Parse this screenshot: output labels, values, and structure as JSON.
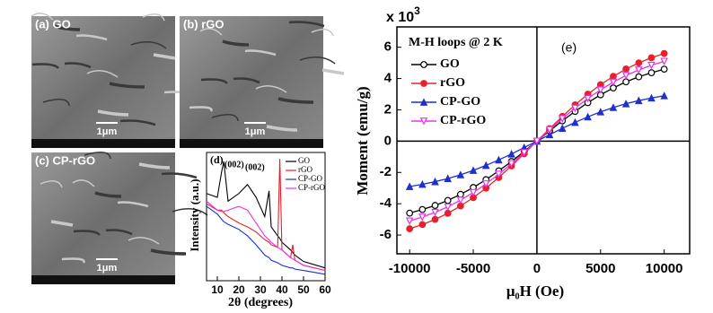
{
  "panels": [
    {
      "label": "(a) GO",
      "scale": "1μm"
    },
    {
      "label": "(b) rGO",
      "scale": "1μm"
    },
    {
      "label": "(c) CP-rGO",
      "scale": "1μm"
    }
  ],
  "chart_data": [
    {
      "type": "line",
      "panel_label": "(d)",
      "x_label": "2θ (degrees)",
      "y_label": "Intensity (a.u.)",
      "x": [
        5,
        10,
        12,
        13,
        15,
        20,
        24,
        28,
        32,
        34,
        35,
        38,
        39,
        40,
        44,
        45,
        46,
        50,
        60
      ],
      "xlim": [
        5,
        60
      ],
      "xticks": [
        10,
        20,
        30,
        40,
        50,
        60
      ],
      "ylim": [
        0,
        100
      ],
      "annotations": [
        "(002)",
        "(002)"
      ],
      "legend": "upper right",
      "series": [
        {
          "name": "GO",
          "color": "#000000",
          "values": [
            68,
            65,
            85,
            93,
            62,
            68,
            75,
            65,
            50,
            70,
            42,
            35,
            33,
            30,
            24,
            22,
            20,
            15,
            10
          ]
        },
        {
          "name": "rGO",
          "color": "#e8202a",
          "values": [
            60,
            55,
            55,
            53,
            50,
            45,
            42,
            38,
            32,
            30,
            28,
            26,
            95,
            24,
            18,
            28,
            16,
            12,
            8
          ]
        },
        {
          "name": "CP-GO",
          "color": "#1f2fd0",
          "values": [
            58,
            52,
            48,
            46,
            44,
            40,
            35,
            28,
            20,
            18,
            16,
            14,
            13,
            12,
            10,
            10,
            9,
            8,
            5
          ]
        },
        {
          "name": "CP-rGO",
          "color": "#e832e8",
          "values": [
            62,
            55,
            54,
            54,
            55,
            58,
            55,
            45,
            35,
            32,
            30,
            26,
            25,
            24,
            18,
            17,
            16,
            12,
            8
          ]
        }
      ]
    },
    {
      "type": "line",
      "panel_label": "(e)",
      "legend_title": "M-H  loops @ 2 K",
      "x_label": "μ₀H (Oe)",
      "y_label": "Moment (emu/g)",
      "y_multiplier": "x 10",
      "y_multiplier_exp": "3",
      "legend": "upper left",
      "x": [
        -10000,
        -9000,
        -8000,
        -7000,
        -6000,
        -5000,
        -4000,
        -3000,
        -2000,
        -1000,
        0,
        1000,
        2000,
        3000,
        4000,
        5000,
        6000,
        7000,
        8000,
        9000,
        10000
      ],
      "xlim": [
        -11000,
        12000
      ],
      "xticks": [
        -10000,
        -5000,
        0,
        5000,
        10000
      ],
      "ylim": [
        -7.2,
        7.3
      ],
      "yticks": [
        -6,
        -4,
        -2,
        0,
        2,
        4,
        6
      ],
      "series": [
        {
          "name": "GO",
          "color": "#000000",
          "marker": "circle-open",
          "values": [
            -4.6,
            -4.37,
            -4.11,
            -3.79,
            -3.4,
            -2.96,
            -2.46,
            -1.9,
            -1.3,
            -0.66,
            0,
            0.66,
            1.3,
            1.9,
            2.46,
            2.96,
            3.4,
            3.79,
            4.11,
            4.37,
            4.6
          ]
        },
        {
          "name": "rGO",
          "color": "#e8202a",
          "marker": "circle",
          "values": [
            -5.6,
            -5.33,
            -5,
            -4.61,
            -4.14,
            -3.61,
            -3,
            -2.32,
            -1.58,
            -0.8,
            0,
            0.8,
            1.58,
            2.32,
            3,
            3.61,
            4.14,
            4.61,
            5,
            5.33,
            5.6
          ]
        },
        {
          "name": "CP-GO",
          "color": "#1f2fd0",
          "marker": "triangle",
          "values": [
            -2.9,
            -2.76,
            -2.59,
            -2.39,
            -2.15,
            -1.87,
            -1.55,
            -1.2,
            -0.82,
            -0.41,
            0,
            0.41,
            0.82,
            1.2,
            1.55,
            1.87,
            2.15,
            2.39,
            2.59,
            2.76,
            2.9
          ]
        },
        {
          "name": "CP-rGO",
          "color": "#e832e8",
          "marker": "triangle-down-open",
          "values": [
            -5.1,
            -4.85,
            -4.55,
            -4.2,
            -3.77,
            -3.28,
            -2.73,
            -2.11,
            -1.44,
            -0.73,
            0,
            0.73,
            1.44,
            2.11,
            2.73,
            3.28,
            3.77,
            4.2,
            4.55,
            4.85,
            5.1
          ]
        }
      ]
    }
  ]
}
